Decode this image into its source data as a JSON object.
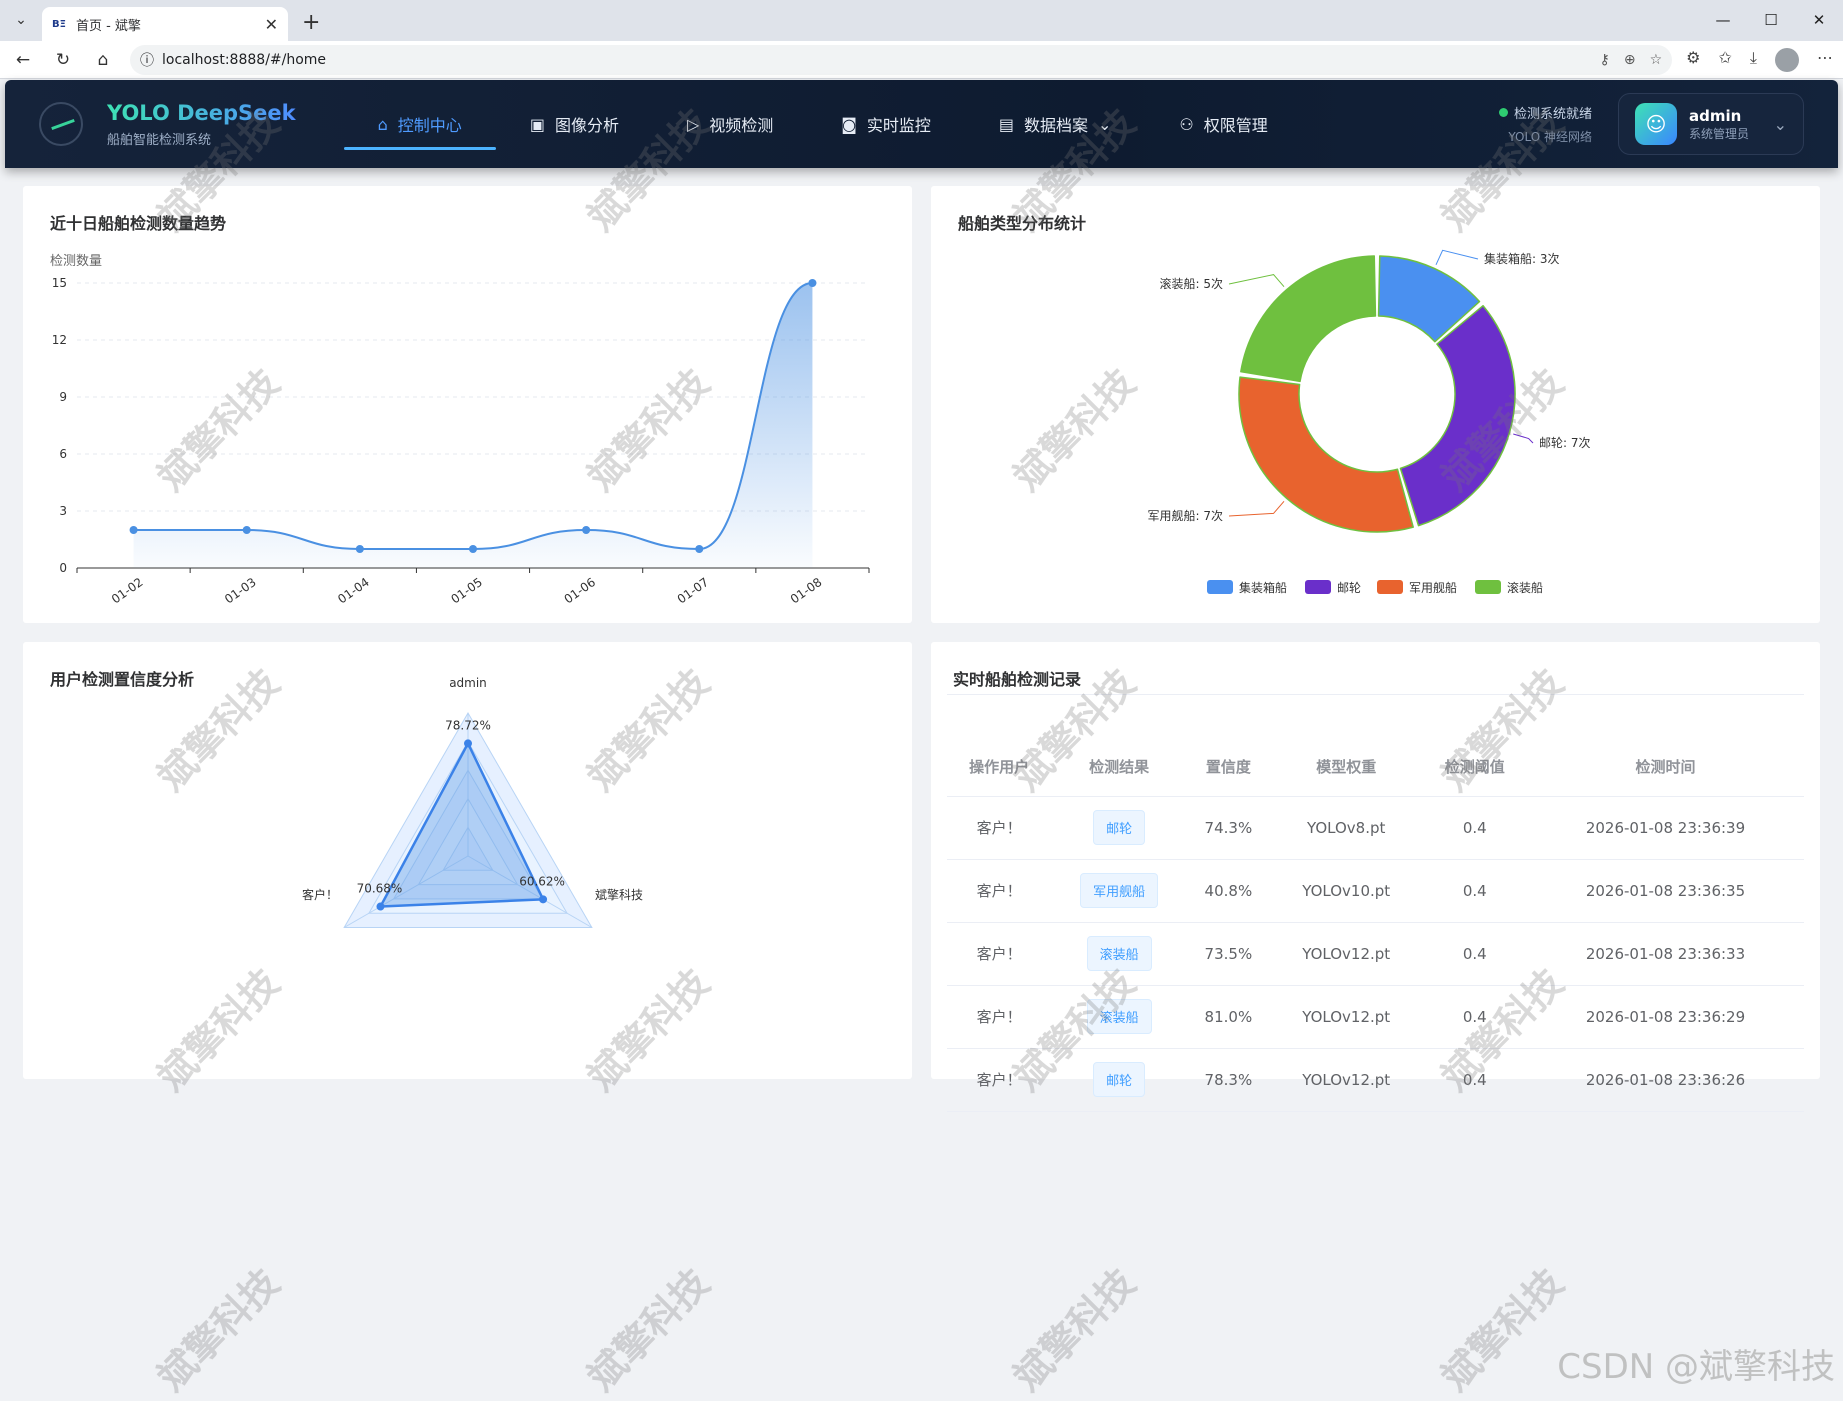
{
  "browser": {
    "tab_title": "首页 - 斌擎",
    "tab_favicon": "BΞ",
    "url": "localhost:8888/#/home"
  },
  "header": {
    "brand_title": "YOLO DeepSeek",
    "brand_subtitle": "船舶智能检测系统",
    "menu": [
      {
        "label": "控制中心",
        "icon": "home-icon"
      },
      {
        "label": "图像分析",
        "icon": "image-icon"
      },
      {
        "label": "视频检测",
        "icon": "play-circle-icon"
      },
      {
        "label": "实时监控",
        "icon": "camera-icon"
      },
      {
        "label": "数据档案",
        "icon": "document-icon"
      },
      {
        "label": "权限管理",
        "icon": "user-icon"
      }
    ],
    "status_title": "检测系统就绪",
    "status_sub": "YOLO 神经网络",
    "user_name": "admin",
    "user_role": "系统管理员"
  },
  "trend": {
    "title": "近十日船舶检测数量趋势",
    "chart_data": {
      "type": "line",
      "ylabel": "检测数量",
      "categories": [
        "01-02",
        "01-03",
        "01-04",
        "01-05",
        "01-06",
        "01-07",
        "01-08"
      ],
      "values": [
        2,
        2,
        1,
        1,
        2,
        1,
        15
      ],
      "ylim": [
        0,
        15
      ],
      "yticks": [
        "0",
        "3",
        "6",
        "9",
        "12",
        "15"
      ],
      "color": "#4a90e2"
    }
  },
  "pie": {
    "title": "船舶类型分布统计",
    "chart_data": {
      "type": "pie",
      "slices": [
        {
          "name": "集装箱船",
          "value": 3,
          "label": "集装箱船: 3次",
          "color": "#4a90f0"
        },
        {
          "name": "邮轮",
          "value": 7,
          "label": "邮轮: 7次",
          "color": "#6a2fca"
        },
        {
          "name": "军用舰船",
          "value": 7,
          "label": "军用舰船: 7次",
          "color": "#e8632e"
        },
        {
          "name": "滚装船",
          "value": 5,
          "label": "滚装船: 5次",
          "color": "#6fc03f"
        }
      ]
    }
  },
  "radar": {
    "title": "用户检测置信度分析",
    "chart_data": {
      "type": "radar",
      "axes": [
        "admin",
        "斌擎科技",
        "客户！"
      ],
      "values": [
        78.72,
        60.62,
        70.68
      ],
      "value_labels": [
        "78.72%",
        "60.62%",
        "70.68%"
      ],
      "max": 100
    }
  },
  "records": {
    "title": "实时船舶检测记录",
    "columns": [
      "操作用户",
      "检测结果",
      "置信度",
      "模型权重",
      "检测阈值",
      "检测时间"
    ],
    "rows": [
      [
        "客户！",
        "邮轮",
        "74.3%",
        "YOLOv8.pt",
        "0.4",
        "2026-01-08 23:36:39"
      ],
      [
        "客户！",
        "军用舰船",
        "40.8%",
        "YOLOv10.pt",
        "0.4",
        "2026-01-08 23:36:35"
      ],
      [
        "客户！",
        "滚装船",
        "73.5%",
        "YOLOv12.pt",
        "0.4",
        "2026-01-08 23:36:33"
      ],
      [
        "客户！",
        "滚装船",
        "81.0%",
        "YOLOv12.pt",
        "0.4",
        "2026-01-08 23:36:29"
      ],
      [
        "客户！",
        "邮轮",
        "78.3%",
        "YOLOv12.pt",
        "0.4",
        "2026-01-08 23:36:26"
      ]
    ]
  },
  "watermark": "斌擎科技",
  "csdn": "CSDN @斌擎科技"
}
